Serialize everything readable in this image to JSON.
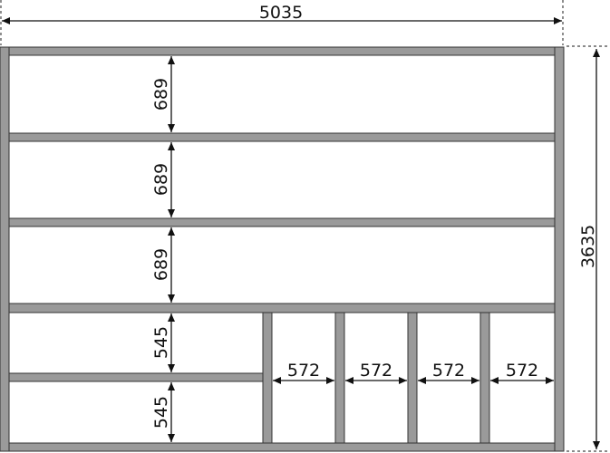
{
  "diagram": {
    "overall_width": "5035",
    "overall_height": "3635",
    "upper_shelf_heights": [
      "689",
      "689",
      "689"
    ],
    "lower_left_heights": [
      "545",
      "545"
    ],
    "lower_bay_widths": [
      "572",
      "572",
      "572",
      "572"
    ],
    "colors": {
      "member_fill": "#9a9a9a",
      "member_stroke": "#333333",
      "dimension": "#111111"
    }
  }
}
